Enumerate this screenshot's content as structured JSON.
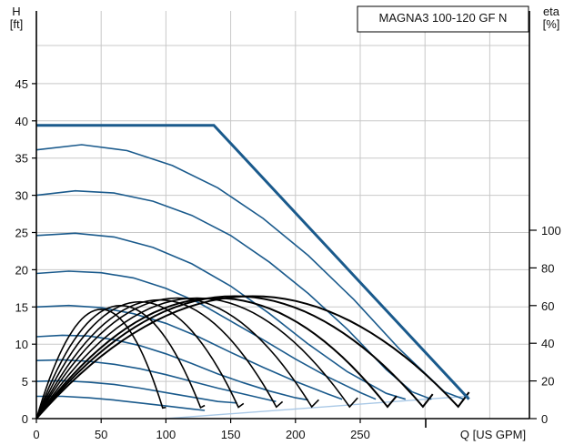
{
  "chart_data": {
    "type": "line",
    "title": "MAGNA3 100-120 GF N",
    "ylabel": "H",
    "yunit": "[ft]",
    "y2label": "eta",
    "y2unit": "[%]",
    "xlabel": "Q [US GPM]",
    "xlim": [
      0,
      380
    ],
    "ylim": [
      0,
      52
    ],
    "y2lim": [
      0,
      100
    ],
    "xticks": [
      "0",
      "50",
      "100",
      "150",
      "200",
      "250"
    ],
    "yticks": [
      "0",
      "5",
      "10",
      "15",
      "20",
      "25",
      "30",
      "35",
      "40",
      "45"
    ],
    "y2ticks": [
      "0",
      "20",
      "40",
      "60",
      "80",
      "100"
    ],
    "grid": true,
    "colors": {
      "pump": "#1a5a8c",
      "max_curve": "#1a5a8c",
      "efficiency": "#000000",
      "efficiency_limit": "#a9c8e6",
      "grid": "#c8c8c8"
    },
    "max_curve": {
      "name": "max",
      "x": [
        0,
        137,
        334
      ],
      "y": [
        39.4,
        39.4,
        2.6
      ]
    },
    "pump_curves": [
      {
        "x": [
          0,
          35,
          70,
          105,
          140,
          175,
          210,
          245,
          280,
          315,
          330
        ],
        "y": [
          36.1,
          36.8,
          36.0,
          34.0,
          31.0,
          26.9,
          21.9,
          16.0,
          9.4,
          3.6,
          2.6
        ]
      },
      {
        "x": [
          0,
          30,
          60,
          90,
          120,
          150,
          180,
          210,
          240,
          270,
          290,
          305
        ],
        "y": [
          30.0,
          30.6,
          30.3,
          29.2,
          27.3,
          24.6,
          21.0,
          16.8,
          12.0,
          6.6,
          3.6,
          2.6
        ]
      },
      {
        "x": [
          0,
          30,
          60,
          90,
          120,
          150,
          180,
          210,
          240,
          270,
          285
        ],
        "y": [
          24.6,
          24.9,
          24.4,
          23.0,
          20.8,
          17.8,
          14.1,
          10.0,
          6.3,
          3.4,
          2.6
        ]
      },
      {
        "x": [
          0,
          25,
          50,
          75,
          100,
          125,
          150,
          175,
          200,
          225,
          250,
          262
        ],
        "y": [
          19.5,
          19.8,
          19.6,
          18.9,
          17.5,
          15.6,
          13.1,
          10.6,
          8.0,
          5.6,
          3.5,
          2.6
        ]
      },
      {
        "x": [
          0,
          25,
          50,
          75,
          100,
          125,
          150,
          175,
          200,
          225,
          236
        ],
        "y": [
          15.0,
          15.2,
          14.9,
          14.1,
          12.8,
          11.0,
          8.9,
          6.9,
          5.0,
          3.3,
          2.6
        ]
      },
      {
        "x": [
          0,
          20,
          40,
          60,
          80,
          100,
          120,
          140,
          160,
          180,
          200,
          210
        ],
        "y": [
          11.0,
          11.2,
          11.1,
          10.6,
          9.8,
          8.7,
          7.4,
          6.0,
          4.8,
          3.7,
          2.8,
          2.5
        ]
      },
      {
        "x": [
          0,
          20,
          40,
          60,
          80,
          100,
          120,
          140,
          160,
          180,
          185
        ],
        "y": [
          7.8,
          7.9,
          7.7,
          7.3,
          6.7,
          5.9,
          5.0,
          4.1,
          3.3,
          2.5,
          2.3
        ]
      },
      {
        "x": [
          0,
          20,
          40,
          60,
          80,
          100,
          120,
          140,
          155
        ],
        "y": [
          5.0,
          5.1,
          4.9,
          4.6,
          4.1,
          3.5,
          2.9,
          2.3,
          2.1
        ]
      },
      {
        "x": [
          0,
          20,
          40,
          60,
          80,
          100,
          120,
          130
        ],
        "y": [
          3.0,
          3.0,
          2.8,
          2.5,
          2.1,
          1.7,
          1.3,
          1.1
        ]
      }
    ],
    "efficiency_curves": [
      {
        "xmax": 100,
        "peak": 58
      },
      {
        "xmax": 130,
        "peak": 60
      },
      {
        "xmax": 160,
        "peak": 62
      },
      {
        "xmax": 190,
        "peak": 63
      },
      {
        "xmax": 218,
        "peak": 64
      },
      {
        "xmax": 248,
        "peak": 64
      },
      {
        "xmax": 278,
        "peak": 64
      },
      {
        "xmax": 306,
        "peak": 65
      },
      {
        "xmax": 334,
        "peak": 65
      }
    ],
    "efficiency_limit": {
      "x": [
        100,
        334
      ],
      "y": [
        0,
        12
      ]
    }
  }
}
